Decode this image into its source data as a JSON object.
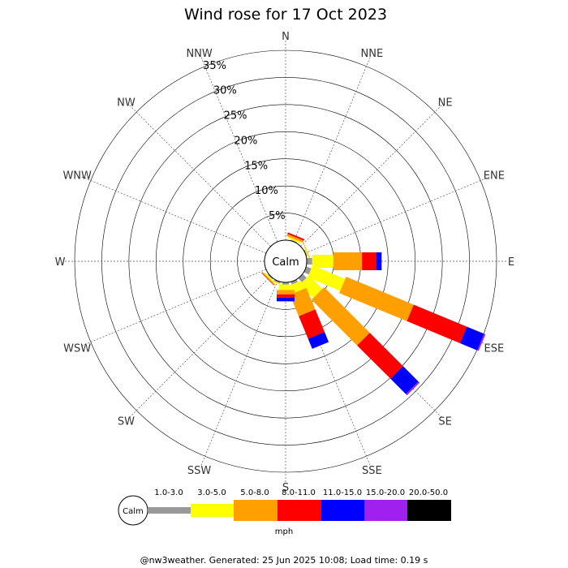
{
  "title": "Wind rose for 17 Oct 2023",
  "footer": "@nw3weather. Generated: 25 Jun 2025 10:08; Load time: 0.19 s",
  "calm_label": "Calm",
  "directions": [
    "N",
    "NNE",
    "NE",
    "ENE",
    "E",
    "ESE",
    "SE",
    "SSE",
    "S",
    "SSW",
    "SW",
    "WSW",
    "W",
    "WNW",
    "NW",
    "NNW"
  ],
  "ring_labels": [
    "5%",
    "10%",
    "15%",
    "20%",
    "25%",
    "30%",
    "35%"
  ],
  "chart_data": {
    "type": "wind-rose",
    "title": "Wind rose for 17 Oct 2023",
    "units": "mph",
    "rlim_percent": [
      0,
      35
    ],
    "ring_ticks_percent": [
      5,
      10,
      15,
      20,
      25,
      30,
      35
    ],
    "speed_bins": [
      {
        "label": "1.0-3.0",
        "color": "#999999"
      },
      {
        "label": "3.0-5.0",
        "color": "#ffff00"
      },
      {
        "label": "5.0-8.0",
        "color": "#ffa000"
      },
      {
        "label": "8.0-11.0",
        "color": "#ff0000"
      },
      {
        "label": "11.0-15.0",
        "color": "#0000ff"
      },
      {
        "label": "15.0-20.0",
        "color": "#a020f0"
      },
      {
        "label": "20.0-50.0",
        "color": "#000000"
      }
    ],
    "series": [
      {
        "direction": "NNE",
        "angle": 22.5,
        "values": [
          0.2,
          0.3,
          0.4,
          0.3,
          0,
          0,
          0
        ]
      },
      {
        "direction": "ENE",
        "angle": 67.5,
        "values": [
          0.2,
          0.2,
          0.1,
          0,
          0,
          0,
          0
        ]
      },
      {
        "direction": "E",
        "angle": 90,
        "values": [
          1.0,
          3.9,
          5.3,
          2.6,
          1.0,
          0,
          0
        ]
      },
      {
        "direction": "ESE",
        "angle": 112.5,
        "values": [
          1.0,
          6.5,
          13.5,
          10.6,
          3.4,
          0.3,
          0
        ]
      },
      {
        "direction": "SE",
        "angle": 135,
        "values": [
          1.0,
          3.5,
          11.9,
          8.7,
          4.0,
          0.3,
          0
        ]
      },
      {
        "direction": "SSE",
        "angle": 157.5,
        "values": [
          0.5,
          1.6,
          4.3,
          4.5,
          2.0,
          0,
          0
        ]
      },
      {
        "direction": "S",
        "angle": 180,
        "values": [
          0.4,
          1.0,
          0.8,
          0.6,
          0.7,
          0,
          0
        ]
      },
      {
        "direction": "SSW",
        "angle": 202.5,
        "values": [
          0.3,
          0.2,
          0,
          0,
          0,
          0,
          0
        ]
      },
      {
        "direction": "SW",
        "angle": 225,
        "values": [
          0.2,
          0.3,
          0.2,
          0.1,
          0,
          0,
          0
        ]
      }
    ]
  },
  "legend": {
    "calm_label": "Calm",
    "unit_label": "mph"
  }
}
